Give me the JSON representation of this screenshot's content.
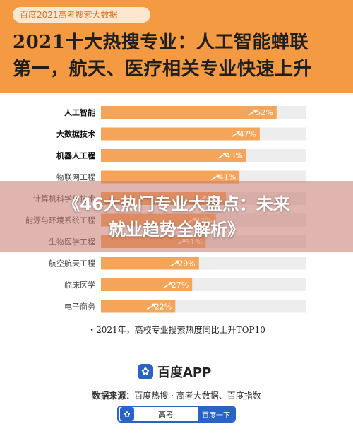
{
  "header": {
    "source_tag": "百度2021高考搜索大数据",
    "title_line1": "2021十大热搜专业：人工智能蝉联",
    "title_line2": "第一，航天、医疗相关专业快速上升",
    "background_color": "#f39a43"
  },
  "chart_data": {
    "type": "bar",
    "orientation": "horizontal",
    "categories": [
      "人工智能",
      "大数据技术",
      "机器人工程",
      "物联网工程",
      "计算机科学与技术",
      "能源与环境系统工程",
      "生物医学工程",
      "航空航天工程",
      "临床医学",
      "电子商务"
    ],
    "values": [
      52,
      47,
      43,
      41,
      37,
      34,
      31,
      29,
      27,
      22
    ],
    "value_labels": [
      "52%",
      "47%",
      "43%",
      "41%",
      "37%",
      "34%",
      "31%",
      "29%",
      "27%",
      "22%"
    ],
    "bold_categories": [
      "人工智能",
      "大数据技术",
      "机器人工程"
    ],
    "xlim": [
      0,
      100
    ],
    "bar_color": "#f5a55a",
    "track_color": "#ededed",
    "label_color": "#ffffff"
  },
  "note": "・2021年，高校专业搜索热度同比上升TOP10",
  "footer": {
    "app_name": "百度APP",
    "source_label": "数据来源：",
    "source_text": "百度热搜 · 高考大数据、百度指数",
    "search_query": "高考",
    "search_button": "百度一下"
  },
  "banner": {
    "line1": "《46大热门专业大盘点：未来",
    "line2": "就业趋势全解析》"
  }
}
